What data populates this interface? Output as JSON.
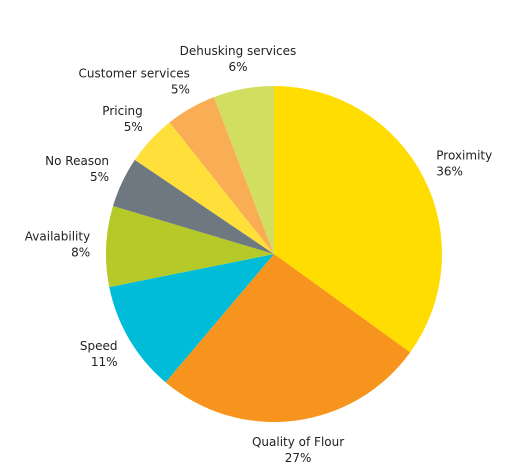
{
  "chart_data": {
    "type": "pie",
    "categories": [
      "Proximity",
      "Quality of Flour",
      "Speed",
      "Availability",
      "No Reason",
      "Pricing",
      "Customer services",
      "Dehusking services"
    ],
    "values": [
      36,
      27,
      11,
      8,
      5,
      5,
      5,
      6
    ],
    "value_labels": [
      "36%",
      "27%",
      "11%",
      "8%",
      "5%",
      "5%",
      "5%",
      "6%"
    ],
    "colors": [
      "#ffdd00",
      "#f7941d",
      "#00bcd9",
      "#b5c928",
      "#6d7880",
      "#ffe03a",
      "#f9ad55",
      "#d2de5f"
    ]
  }
}
